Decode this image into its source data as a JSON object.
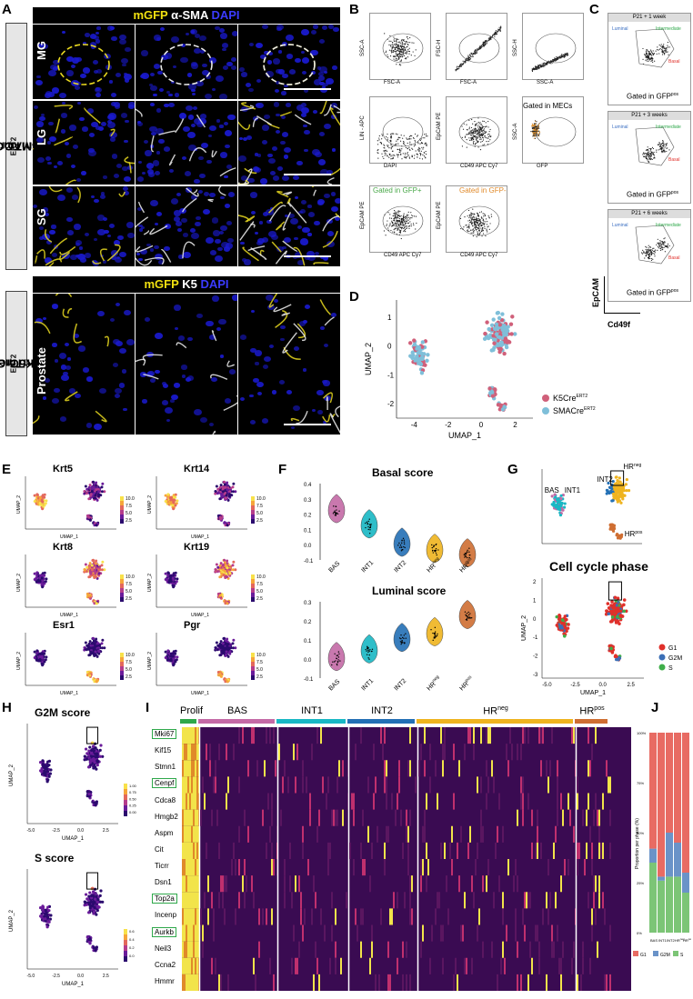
{
  "panels": {
    "A": "A",
    "B": "B",
    "C": "C",
    "D": "D",
    "E": "E",
    "F": "F",
    "G": "G",
    "H": "H",
    "I": "I",
    "J": "J"
  },
  "panelA": {
    "header1": {
      "mgfp": "mGFP",
      "second": "α-SMA",
      "dapi": "DAPI"
    },
    "header2": {
      "mgfp": "mGFP",
      "second": "K5",
      "dapi": "DAPI"
    },
    "rows": [
      "MG",
      "LG",
      "SG"
    ],
    "row2": [
      "Prostate"
    ],
    "side1": "SMACre",
    "side1_sup": "ERT2",
    "side1_rest": " / mTmG",
    "side2": "K5Cre",
    "side2_sup": "ERT2",
    "side2_rest": "/mTmG"
  },
  "panelB": {
    "plots": [
      {
        "ylabel": "SSC-A",
        "xlabel": "FSC-A"
      },
      {
        "ylabel": "FSC-H",
        "xlabel": "FSC-A"
      },
      {
        "ylabel": "SSC-H",
        "xlabel": "SSC-A"
      },
      {
        "ylabel": "LIN - APC",
        "xlabel": "DAPI"
      },
      {
        "ylabel": "EpCAM PE",
        "xlabel": "CD49 APC Cy7"
      },
      {
        "ylabel": "SSC-A",
        "xlabel": "GFP"
      },
      {
        "ylabel": "EpCAM PE",
        "xlabel": "CD49 APC Cy7"
      },
      {
        "ylabel": "EpCAM PE",
        "xlabel": "CD49 APC Cy7"
      }
    ],
    "gated_mecs": "Gated in MECs",
    "gated_gfp_plus": "Gated in GFP+",
    "gated_gfp_minus": "Gated in GFP-"
  },
  "panelC": {
    "plots": [
      {
        "title": "P21 + 1 week",
        "gate": "Gated in GFP",
        "sup": "pos"
      },
      {
        "title": "P21 + 3 weeks",
        "gate": "Gated in GFP",
        "sup": "pos"
      },
      {
        "title": "P21 + 6 weeks",
        "gate": "Gated in GFP",
        "sup": "pos"
      }
    ],
    "labels": {
      "luminal": "Luminal",
      "intermediate": "Intermediate",
      "basal": "Basal"
    },
    "yaxis": "EpCAM",
    "xaxis": "Cd49f"
  },
  "panelD": {
    "ylabel": "UMAP_2",
    "xlabel": "UMAP_1",
    "xticks": [
      "-4",
      "-2",
      "0",
      "2"
    ],
    "yticks": [
      "1",
      "0",
      "-1",
      "-2"
    ],
    "legend": [
      {
        "label": "K5Cre",
        "sup": "ERT2",
        "color": "#d0607a"
      },
      {
        "label": "SMACre",
        "sup": "ERT2",
        "color": "#7fbfd9"
      }
    ]
  },
  "panelE": {
    "genes": [
      "Krt5",
      "Krt14",
      "Krt8",
      "Krt19",
      "Esr1",
      "Pgr"
    ],
    "scale": [
      "10.0",
      "7.5",
      "5.0",
      "2.5"
    ],
    "xlabel": "UMAP_1",
    "ylabel": "UMAP_2"
  },
  "panelF": {
    "chart_data": [
      {
        "type": "violin",
        "title": "Basal score",
        "categories": [
          "BAS",
          "INT1",
          "INT2",
          "HRneg",
          "HRpos"
        ],
        "ylim": [
          -0.1,
          0.4
        ],
        "yticks": [
          "0.4",
          "0.3",
          "0.2",
          "0.1",
          "0.0",
          "-0.1"
        ],
        "medians": [
          0.22,
          0.12,
          0.0,
          -0.04,
          -0.07
        ],
        "colors": [
          "#c46aa6",
          "#19b8c4",
          "#2370b5",
          "#efb41f",
          "#cf6e32"
        ]
      },
      {
        "type": "violin",
        "title": "Luminal score",
        "categories": [
          "BAS",
          "INT1",
          "INT2",
          "HRneg",
          "HRpos"
        ],
        "ylim": [
          -0.1,
          0.3
        ],
        "yticks": [
          "0.3",
          "0.2",
          "0.1",
          "0.0",
          "-0.1"
        ],
        "medians": [
          0.0,
          0.04,
          0.1,
          0.13,
          0.22
        ],
        "colors": [
          "#c46aa6",
          "#19b8c4",
          "#2370b5",
          "#efb41f",
          "#cf6e32"
        ]
      }
    ]
  },
  "panelG": {
    "clusters": [
      "BAS",
      "INT1",
      "INT2",
      "HR",
      "HR"
    ],
    "hrneg_sup": "neg",
    "hrpos_sup": "pos",
    "cc_title": "Cell cycle phase",
    "legend": [
      {
        "label": "G1",
        "color": "#e0302a"
      },
      {
        "label": "G2M",
        "color": "#3c6fb6"
      },
      {
        "label": "S",
        "color": "#3fae4a"
      }
    ],
    "xlabel": "UMAP_1",
    "ylabel": "UMAP_2",
    "xticks": [
      "-5.0",
      "-2.5",
      "0.0",
      "2.5"
    ],
    "yticks": [
      "2",
      "1",
      "0",
      "-1",
      "-2",
      "-3"
    ]
  },
  "panelH": {
    "g2m_title": "G2M score",
    "s_title": "S score",
    "g2m_scale": [
      "1.00",
      "0.75",
      "0.50",
      "0.25",
      "0.00"
    ],
    "s_scale": [
      "0.6",
      "0.4",
      "0.2",
      "0.0"
    ],
    "xlabel": "UMAP_1",
    "ylabel": "UMAP_2",
    "xticks": [
      "-5.0",
      "-2.5",
      "0.0",
      "2.5"
    ]
  },
  "panelI": {
    "groups": [
      {
        "label": "Prolif",
        "color": "#2ea84a"
      },
      {
        "label": "BAS",
        "color": "#c46aa6"
      },
      {
        "label": "INT1",
        "color": "#19b8c4"
      },
      {
        "label": "INT2",
        "color": "#2370b5"
      },
      {
        "label": "HR",
        "sup": "neg",
        "color": "#efb41f"
      },
      {
        "label": "HR",
        "sup": "pos",
        "color": "#cf6e32"
      }
    ],
    "genes": [
      "Mki67",
      "Kif15",
      "Stmn1",
      "Cenpf",
      "Cdca8",
      "Hmgb2",
      "Aspm",
      "Cit",
      "Ticrr",
      "Dsn1",
      "Top2a",
      "Incenp",
      "Aurkb",
      "Neil3",
      "Ccna2",
      "Hmmr"
    ],
    "boxed": [
      "Mki67",
      "Cenpf",
      "Top2a",
      "Aurkb"
    ]
  },
  "panelJ": {
    "chart_data": {
      "type": "bar",
      "stacked": true,
      "categories": [
        "BAS",
        "INT1",
        "INT2",
        "HRneg",
        "HRpos"
      ],
      "series": [
        {
          "name": "G1",
          "values": [
            58,
            72,
            50,
            55,
            70
          ],
          "color": "#e86b63"
        },
        {
          "name": "G2M",
          "values": [
            7,
            2,
            22,
            17,
            10
          ],
          "color": "#6a93c8"
        },
        {
          "name": "S",
          "values": [
            35,
            26,
            28,
            28,
            20
          ],
          "color": "#7cc576"
        }
      ],
      "ylabel": "Proportion per phase (%)",
      "yticks": [
        "100%",
        "75%",
        "50%",
        "25%",
        "0%"
      ],
      "ylim": [
        0,
        100
      ]
    }
  }
}
